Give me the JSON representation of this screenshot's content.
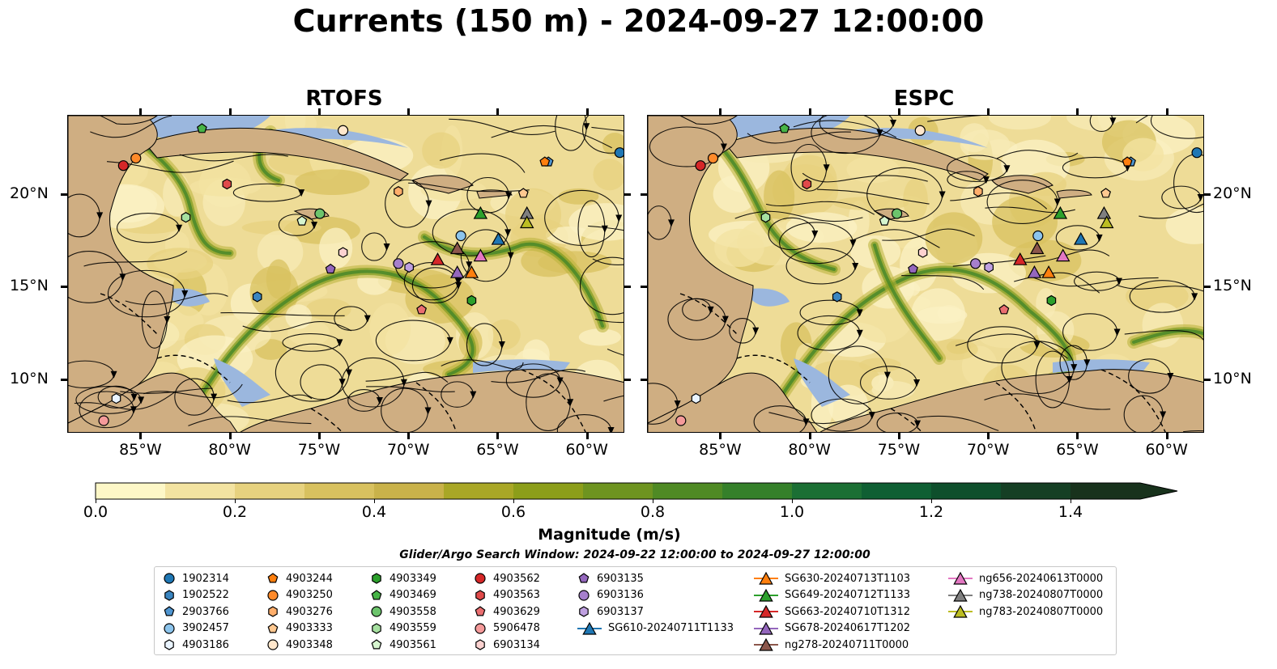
{
  "title": "Currents (150 m) - 2024-09-27 12:00:00",
  "panels": [
    {
      "title": "RTOFS"
    },
    {
      "title": "ESPC"
    }
  ],
  "lon_ticks": [
    "85°W",
    "80°W",
    "75°W",
    "70°W",
    "65°W",
    "60°W"
  ],
  "lat_ticks": [
    "20°N",
    "15°N",
    "10°N"
  ],
  "colorbar": {
    "label": "Magnitude (m/s)",
    "ticks": [
      "0.0",
      "0.2",
      "0.4",
      "0.6",
      "0.8",
      "1.0",
      "1.2",
      "1.4"
    ],
    "range": [
      0.0,
      1.5
    ],
    "extend": "max",
    "colors": [
      "#fdf7c7",
      "#f3e3a1",
      "#e7d27f",
      "#d8c15f",
      "#c9b24a",
      "#a9a726",
      "#8c9e1a",
      "#6e9420",
      "#4f8a24",
      "#35802a",
      "#1b6f34",
      "#0f5f33",
      "#0e4f2c",
      "#153f24",
      "#18321c"
    ]
  },
  "search_window": "Glider/Argo Search Window: 2024-09-22 12:00:00 to 2024-09-27 12:00:00",
  "legend": [
    {
      "label": "1902314",
      "marker": "circle",
      "color": "#1f77b4"
    },
    {
      "label": "1902522",
      "marker": "hexagon",
      "color": "#3a85c0"
    },
    {
      "label": "2903766",
      "marker": "pentagon",
      "color": "#4f95d0"
    },
    {
      "label": "3902457",
      "marker": "circle",
      "color": "#8cc4ec"
    },
    {
      "label": "4903186",
      "marker": "hexagon",
      "color": "#eaf4ff"
    },
    {
      "label": "4903244",
      "marker": "pentagon",
      "color": "#ff7f0e"
    },
    {
      "label": "4903250",
      "marker": "circle",
      "color": "#ff8a2a"
    },
    {
      "label": "4903276",
      "marker": "hexagon",
      "color": "#ffae6b"
    },
    {
      "label": "4903333",
      "marker": "pentagon",
      "color": "#ffc890"
    },
    {
      "label": "4903348",
      "marker": "circle",
      "color": "#ffe7cc"
    },
    {
      "label": "4903349",
      "marker": "hexagon",
      "color": "#2ca02c"
    },
    {
      "label": "4903469",
      "marker": "pentagon",
      "color": "#47b447"
    },
    {
      "label": "4903558",
      "marker": "circle",
      "color": "#6cc46c"
    },
    {
      "label": "4903559",
      "marker": "hexagon",
      "color": "#a6e0a0"
    },
    {
      "label": "4903561",
      "marker": "pentagon",
      "color": "#d6f5cf"
    },
    {
      "label": "4903562",
      "marker": "circle",
      "color": "#d62728"
    },
    {
      "label": "4903563",
      "marker": "hexagon",
      "color": "#e04a4a"
    },
    {
      "label": "4903629",
      "marker": "pentagon",
      "color": "#ea6e70"
    },
    {
      "label": "5906478",
      "marker": "circle",
      "color": "#f59a9a"
    },
    {
      "label": "6903134",
      "marker": "hexagon",
      "color": "#fcd2d0"
    },
    {
      "label": "6903135",
      "marker": "pentagon",
      "color": "#9467bd"
    },
    {
      "label": "6903136",
      "marker": "circle",
      "color": "#a67fcc"
    },
    {
      "label": "6903137",
      "marker": "hexagon",
      "color": "#bfa0e0"
    },
    {
      "label": "SG610-20240711T1133",
      "marker": "triangle-line",
      "color": "#1f77b4"
    },
    {
      "label": "SG630-20240713T1103",
      "marker": "triangle-line",
      "color": "#ff7f0e"
    },
    {
      "label": "SG649-20240712T1133",
      "marker": "triangle-line",
      "color": "#2ca02c"
    },
    {
      "label": "SG663-20240710T1312",
      "marker": "triangle-line",
      "color": "#d62728"
    },
    {
      "label": "SG678-20240617T1202",
      "marker": "triangle-line",
      "color": "#9467bd"
    },
    {
      "label": "ng278-20240711T0000",
      "marker": "triangle-line",
      "color": "#8c564b"
    },
    {
      "label": "ng656-20240613T0000",
      "marker": "triangle-line",
      "color": "#e377c2"
    },
    {
      "label": "ng738-20240807T0000",
      "marker": "triangle-line",
      "color": "#7f7f7f"
    },
    {
      "label": "ng783-20240807T0000",
      "marker": "triangle-line",
      "color": "#bcbd22"
    }
  ],
  "map_colors": {
    "land": "#cfae82",
    "ocean_shelf": "#9bb7de",
    "field_low": "#f3e4a6",
    "field_high": "#6e9420"
  }
}
